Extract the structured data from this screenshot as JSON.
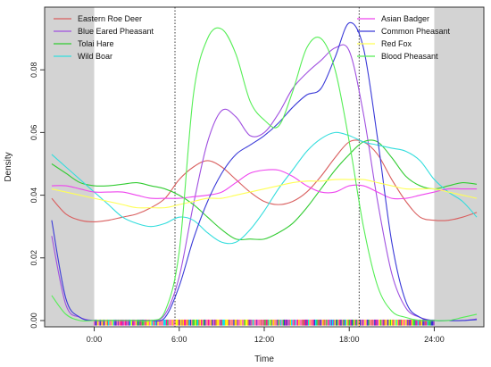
{
  "chart_data": {
    "type": "line",
    "title": "",
    "xlabel": "Time",
    "ylabel": "Density",
    "xlim": [
      -3.5,
      27.5
    ],
    "ylim": [
      -0.002,
      0.1
    ],
    "grid": false,
    "x_ticks": [
      0,
      6,
      12,
      18,
      24
    ],
    "x_tick_labels": [
      "0:00",
      "6:00",
      "12:00",
      "18:00",
      "24:00"
    ],
    "y_ticks": [
      0,
      0.02,
      0.04,
      0.06,
      0.08
    ],
    "y_tick_labels": [
      "0.00",
      "0.02",
      "0.04",
      "0.06",
      "0.08"
    ],
    "shaded_ranges": [
      [
        -3.5,
        0
      ],
      [
        24,
        27.5
      ]
    ],
    "vertical_lines": [
      5.7,
      18.7
    ],
    "rug_colors": [
      "#ff8080",
      "#9932cc",
      "#ffff00",
      "#2ecc40",
      "#ff69b4",
      "#3333cc",
      "#00e5ee",
      "#cd5c5c",
      "#ffd700",
      "#ff1493"
    ],
    "legend": {
      "left": [
        "Eastern Roe Deer",
        "Blue Eared Pheasant",
        "Tolai Hare",
        "Wild Boar"
      ],
      "right": [
        "Asian Badger",
        "Common Pheasant",
        "Red Fox",
        "Blood Pheasant"
      ]
    },
    "series": [
      {
        "name": "Eastern Roe Deer",
        "color": "#d95f5f",
        "x": [
          -3,
          -2,
          -1,
          0,
          1,
          2,
          3,
          4,
          5,
          6,
          7,
          8,
          9,
          10,
          11,
          12,
          13,
          14,
          15,
          16,
          17,
          18,
          19,
          20,
          21,
          22,
          23,
          24,
          25,
          26,
          27
        ],
        "y": [
          0.039,
          0.034,
          0.032,
          0.0315,
          0.032,
          0.033,
          0.034,
          0.036,
          0.039,
          0.045,
          0.049,
          0.051,
          0.049,
          0.045,
          0.041,
          0.038,
          0.037,
          0.038,
          0.041,
          0.046,
          0.052,
          0.057,
          0.057,
          0.053,
          0.045,
          0.038,
          0.033,
          0.032,
          0.032,
          0.033,
          0.0345
        ]
      },
      {
        "name": "Blue Eared Pheasant",
        "color": "#a050e0",
        "x": [
          -3,
          -2,
          -1,
          0,
          1,
          2,
          3,
          4,
          5,
          6,
          7,
          8,
          9,
          10,
          11,
          12,
          13,
          14,
          15,
          16,
          17,
          18,
          19,
          20,
          21,
          22,
          23,
          24,
          25,
          26,
          27
        ],
        "y": [
          0.027,
          0.005,
          0.001,
          0.0,
          0.0,
          0.0,
          0.0,
          0.0,
          0.002,
          0.014,
          0.037,
          0.057,
          0.067,
          0.065,
          0.059,
          0.06,
          0.066,
          0.074,
          0.079,
          0.083,
          0.087,
          0.086,
          0.066,
          0.038,
          0.015,
          0.004,
          0.001,
          0.0,
          0.0,
          0.0,
          0.0005
        ]
      },
      {
        "name": "Tolai Hare",
        "color": "#33cc33",
        "x": [
          -3,
          -2,
          -1,
          0,
          1,
          2,
          3,
          4,
          5,
          6,
          7,
          8,
          9,
          10,
          11,
          12,
          13,
          14,
          15,
          16,
          17,
          18,
          19,
          20,
          21,
          22,
          23,
          24,
          25,
          26,
          27
        ],
        "y": [
          0.05,
          0.047,
          0.044,
          0.043,
          0.043,
          0.0435,
          0.044,
          0.043,
          0.042,
          0.04,
          0.037,
          0.033,
          0.029,
          0.026,
          0.026,
          0.026,
          0.028,
          0.031,
          0.036,
          0.042,
          0.048,
          0.053,
          0.057,
          0.057,
          0.052,
          0.046,
          0.043,
          0.042,
          0.043,
          0.044,
          0.0435
        ]
      },
      {
        "name": "Wild Boar",
        "color": "#33dddd",
        "x": [
          -3,
          -2,
          -1,
          0,
          1,
          2,
          3,
          4,
          5,
          6,
          7,
          8,
          9,
          10,
          11,
          12,
          13,
          14,
          15,
          16,
          17,
          18,
          19,
          20,
          21,
          22,
          23,
          24,
          25,
          26,
          27
        ],
        "y": [
          0.053,
          0.049,
          0.045,
          0.041,
          0.037,
          0.033,
          0.031,
          0.03,
          0.031,
          0.033,
          0.032,
          0.028,
          0.025,
          0.025,
          0.029,
          0.035,
          0.042,
          0.048,
          0.054,
          0.058,
          0.06,
          0.059,
          0.057,
          0.056,
          0.055,
          0.054,
          0.051,
          0.045,
          0.041,
          0.038,
          0.033
        ]
      },
      {
        "name": "Asian Badger",
        "color": "#ee44ee",
        "x": [
          -3,
          -2,
          -1,
          0,
          1,
          2,
          3,
          4,
          5,
          6,
          7,
          8,
          9,
          10,
          11,
          12,
          13,
          14,
          15,
          16,
          17,
          18,
          19,
          20,
          21,
          22,
          23,
          24,
          25,
          26,
          27
        ],
        "y": [
          0.043,
          0.043,
          0.042,
          0.041,
          0.041,
          0.041,
          0.04,
          0.039,
          0.039,
          0.039,
          0.0395,
          0.04,
          0.041,
          0.044,
          0.047,
          0.048,
          0.048,
          0.046,
          0.043,
          0.041,
          0.041,
          0.043,
          0.043,
          0.041,
          0.039,
          0.039,
          0.04,
          0.041,
          0.042,
          0.042,
          0.042
        ]
      },
      {
        "name": "Common Pheasant",
        "color": "#3a3ad8",
        "x": [
          -3,
          -2,
          -1,
          0,
          1,
          2,
          3,
          4,
          5,
          6,
          7,
          8,
          9,
          10,
          11,
          12,
          13,
          14,
          15,
          16,
          17,
          18,
          19,
          20,
          21,
          22,
          23,
          24,
          25,
          26,
          27
        ],
        "y": [
          0.032,
          0.007,
          0.001,
          0.0,
          0.0,
          0.0,
          0.0,
          0.0,
          0.001,
          0.011,
          0.026,
          0.038,
          0.047,
          0.053,
          0.056,
          0.059,
          0.063,
          0.068,
          0.072,
          0.074,
          0.084,
          0.095,
          0.087,
          0.058,
          0.025,
          0.006,
          0.001,
          0.0,
          0.0,
          0.0,
          0.0003
        ]
      },
      {
        "name": "Red Fox",
        "color": "#ffff55",
        "x": [
          -3,
          -2,
          -1,
          0,
          1,
          2,
          3,
          4,
          5,
          6,
          7,
          8,
          9,
          10,
          11,
          12,
          13,
          14,
          15,
          16,
          17,
          18,
          19,
          20,
          21,
          22,
          23,
          24,
          25,
          26,
          27
        ],
        "y": [
          0.042,
          0.041,
          0.04,
          0.039,
          0.038,
          0.037,
          0.036,
          0.036,
          0.036,
          0.037,
          0.038,
          0.039,
          0.039,
          0.04,
          0.041,
          0.042,
          0.043,
          0.044,
          0.0445,
          0.0445,
          0.045,
          0.045,
          0.045,
          0.044,
          0.043,
          0.042,
          0.042,
          0.042,
          0.041,
          0.04,
          0.039
        ]
      },
      {
        "name": "Blood Pheasant",
        "color": "#55ee55",
        "x": [
          -3,
          -2,
          -1,
          0,
          1,
          2,
          3,
          4,
          5,
          6,
          7,
          8,
          9,
          10,
          11,
          12,
          13,
          14,
          15,
          16,
          17,
          18,
          19,
          20,
          21,
          22,
          23,
          24,
          25,
          26,
          27
        ],
        "y": [
          0.008,
          0.002,
          0.0,
          0.0,
          0.0,
          0.0,
          0.0,
          0.0,
          0.003,
          0.022,
          0.072,
          0.09,
          0.093,
          0.085,
          0.07,
          0.064,
          0.062,
          0.073,
          0.087,
          0.09,
          0.08,
          0.057,
          0.03,
          0.011,
          0.003,
          0.001,
          0.0,
          0.0,
          0.0,
          0.001,
          0.002
        ]
      }
    ]
  }
}
